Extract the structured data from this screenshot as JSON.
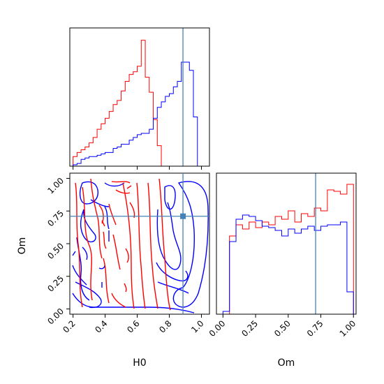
{
  "chart_data": {
    "type": "corner",
    "parameters": [
      "H0",
      "Om"
    ],
    "truth": {
      "H0": 0.885,
      "Om": 0.71
    },
    "colors": {
      "red": "#ff0000",
      "blue": "#0000ff",
      "truth": "#4682b4",
      "axes": "#000000"
    },
    "h0_hist": {
      "bin_edges": [
        0.2,
        0.225,
        0.25,
        0.275,
        0.3,
        0.325,
        0.35,
        0.375,
        0.4,
        0.425,
        0.45,
        0.475,
        0.5,
        0.525,
        0.55,
        0.575,
        0.6,
        0.625,
        0.65,
        0.675,
        0.7,
        0.725,
        0.75,
        0.775,
        0.8,
        0.825,
        0.85,
        0.875,
        0.9,
        0.925,
        0.95,
        0.975,
        1.0
      ],
      "series": [
        {
          "color": "red",
          "values": [
            0.07,
            0.1,
            0.12,
            0.14,
            0.17,
            0.21,
            0.27,
            0.31,
            0.35,
            0.4,
            0.45,
            0.48,
            0.55,
            0.62,
            0.67,
            0.69,
            0.73,
            0.92,
            0.65,
            0.54,
            0.34,
            0.15,
            0.0,
            0.0,
            0.0,
            0.0,
            0.0,
            0.0,
            0.0,
            0.0,
            0.0,
            0.0
          ]
        },
        {
          "color": "blue",
          "values": [
            0.01,
            0.02,
            0.05,
            0.06,
            0.07,
            0.07,
            0.08,
            0.09,
            0.1,
            0.1,
            0.13,
            0.14,
            0.16,
            0.16,
            0.19,
            0.21,
            0.23,
            0.24,
            0.24,
            0.27,
            0.35,
            0.43,
            0.47,
            0.51,
            0.53,
            0.58,
            0.62,
            0.76,
            0.76,
            0.7,
            0.36,
            0.0
          ]
        }
      ],
      "xlim": [
        0.18,
        1.05
      ]
    },
    "om_hist": {
      "bin_edges": [
        0.0,
        0.05,
        0.1,
        0.15,
        0.2,
        0.25,
        0.3,
        0.35,
        0.4,
        0.45,
        0.5,
        0.55,
        0.6,
        0.65,
        0.7,
        0.75,
        0.8,
        0.85,
        0.9,
        0.95,
        1.0
      ],
      "series": [
        {
          "color": "red",
          "values": [
            0.0,
            0.56,
            0.64,
            0.61,
            0.66,
            0.62,
            0.66,
            0.64,
            0.7,
            0.68,
            0.74,
            0.66,
            0.72,
            0.7,
            0.76,
            0.74,
            0.89,
            0.88,
            0.86,
            0.93
          ]
        },
        {
          "color": "blue",
          "values": [
            0.02,
            0.52,
            0.68,
            0.71,
            0.7,
            0.67,
            0.63,
            0.62,
            0.6,
            0.56,
            0.61,
            0.58,
            0.61,
            0.63,
            0.6,
            0.63,
            0.64,
            0.64,
            0.66,
            0.16
          ]
        }
      ],
      "xlim": [
        -0.05,
        1.02
      ]
    },
    "scatter_panel": {
      "xlabel": "H0",
      "ylabel": "Om",
      "xlim": [
        0.18,
        1.05
      ],
      "ylim": [
        -0.04,
        1.04
      ],
      "xticks": [
        "0.2",
        "0.4",
        "0.6",
        "0.8",
        "1.0"
      ],
      "yticks": [
        "0.00",
        "0.25",
        "0.50",
        "0.75",
        "1.00"
      ]
    },
    "om_panel": {
      "xlabel": "Om",
      "xticks": [
        "0.00",
        "0.25",
        "0.50",
        "0.75",
        "1.00"
      ]
    }
  }
}
